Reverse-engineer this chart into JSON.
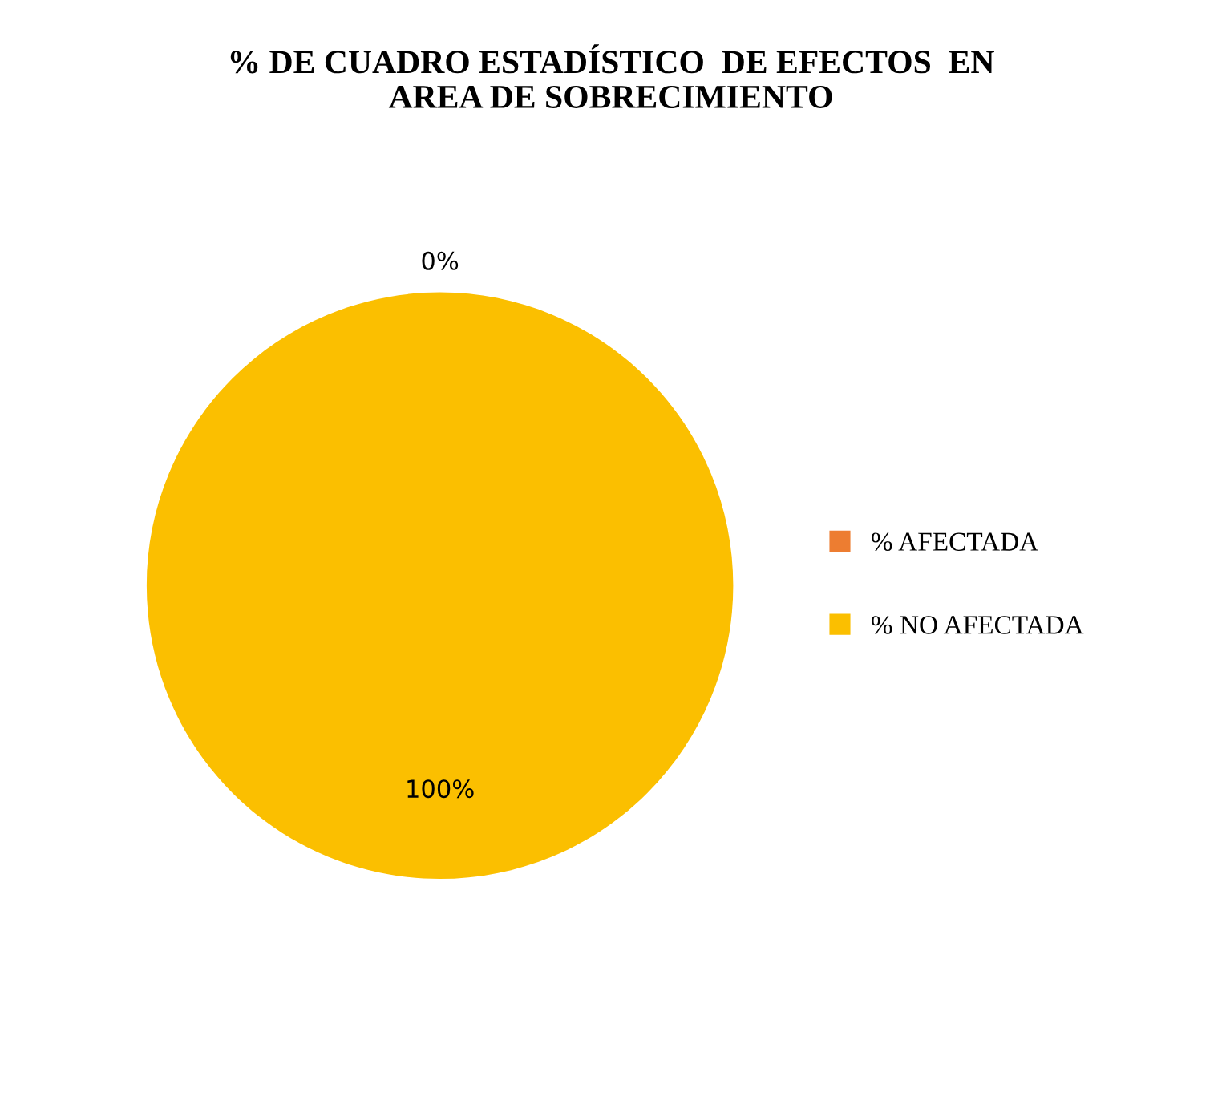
{
  "chart_data": {
    "type": "pie",
    "title": "% DE CUADRO ESTADÍSTICO  DE EFECTOS  EN\nAREA DE SOBRECIMIENTO",
    "categories": [
      "% AFECTADA",
      "% NO AFECTADA"
    ],
    "values": [
      0,
      100
    ],
    "colors": [
      "#ed7d31",
      "#fbbf00"
    ],
    "value_labels": [
      "0%",
      "100%"
    ],
    "legend": "right"
  }
}
